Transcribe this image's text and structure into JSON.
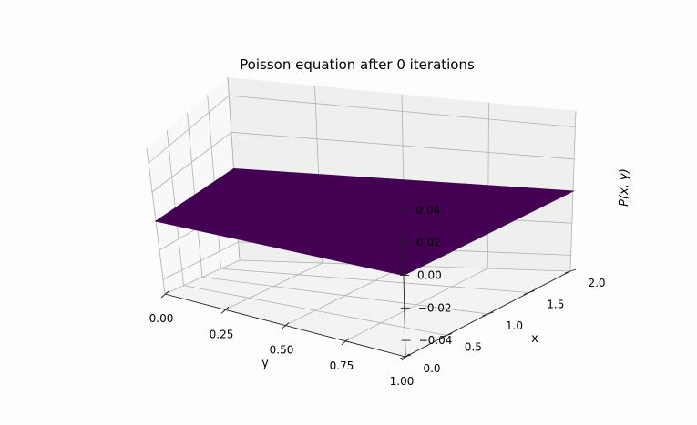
{
  "chart_data": {
    "type": "surface3d",
    "title": "Poisson equation after 0 iterations",
    "xlabel": "x",
    "ylabel": "y",
    "zlabel": "P(x, y)",
    "x_range": [
      0,
      2
    ],
    "y_range": [
      0,
      1
    ],
    "z_range": [
      -0.05,
      0.05
    ],
    "x_ticks": [
      "0.0",
      "0.5",
      "1.0",
      "1.5",
      "2.0"
    ],
    "x_tick_values": [
      0,
      0.5,
      1.0,
      1.5,
      2.0
    ],
    "y_ticks": [
      "0.00",
      "0.25",
      "0.50",
      "0.75",
      "1.00"
    ],
    "y_tick_values": [
      0,
      0.25,
      0.5,
      0.75,
      1.0
    ],
    "z_ticks": [
      "−0.04",
      "−0.02",
      "0.00",
      "0.02",
      "0.04"
    ],
    "z_tick_values": [
      -0.04,
      -0.02,
      0,
      0.02,
      0.04
    ],
    "surface_value": 0,
    "surface_color": "#440154",
    "colormap": "viridis",
    "grid": true
  }
}
